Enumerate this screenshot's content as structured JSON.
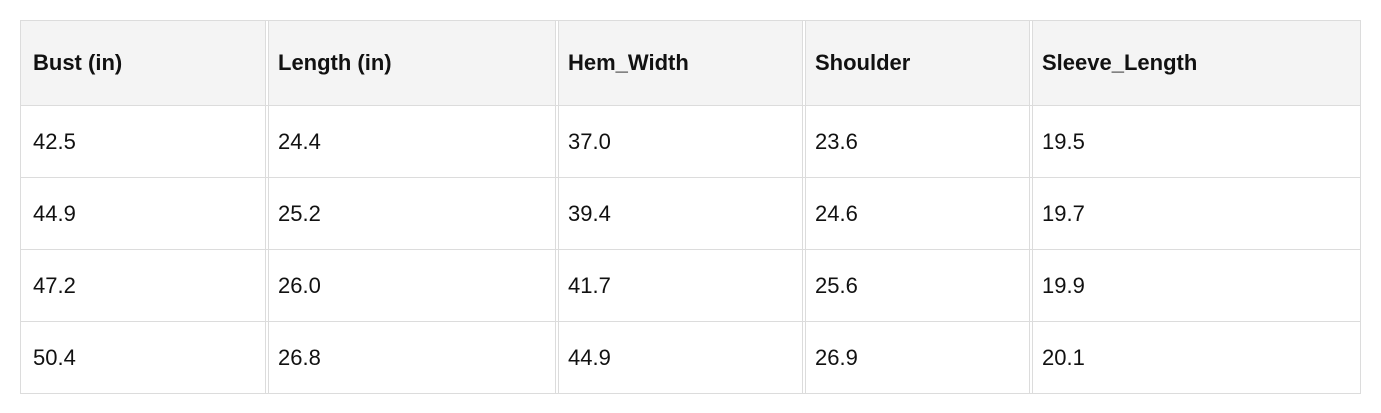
{
  "table": {
    "headers": [
      "Bust (in)",
      "Length (in)",
      "Hem_Width",
      "Shoulder",
      "Sleeve_Length"
    ],
    "rows": [
      [
        "42.5",
        "24.4",
        "37.0",
        "23.6",
        "19.5"
      ],
      [
        "44.9",
        "25.2",
        "39.4",
        "24.6",
        "19.7"
      ],
      [
        "47.2",
        "26.0",
        "41.7",
        "25.6",
        "19.9"
      ],
      [
        "50.4",
        "26.8",
        "44.9",
        "26.9",
        "20.1"
      ]
    ]
  }
}
